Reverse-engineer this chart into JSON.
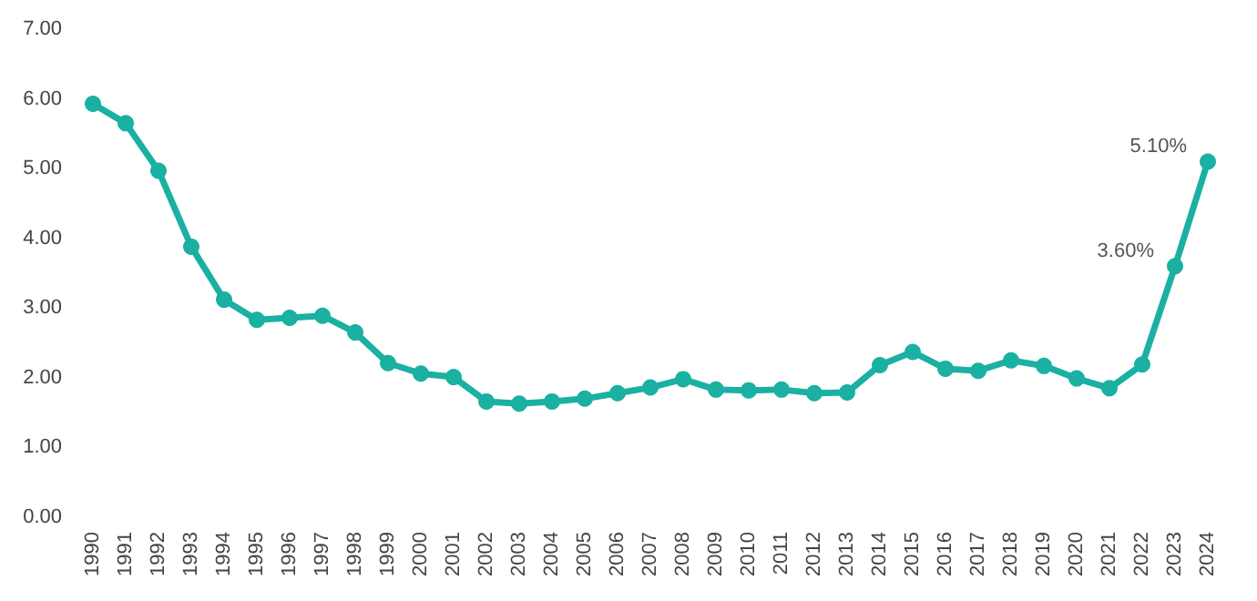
{
  "chart_data": {
    "type": "line",
    "categories": [
      "1990",
      "1991",
      "1992",
      "1993",
      "1994",
      "1995",
      "1996",
      "1997",
      "1998",
      "1999",
      "2000",
      "2001",
      "2002",
      "2003",
      "2004",
      "2005",
      "2006",
      "2007",
      "2008",
      "2009",
      "2010",
      "2011",
      "2012",
      "2013",
      "2014",
      "2015",
      "2016",
      "2017",
      "2018",
      "2019",
      "2020",
      "2021",
      "2022",
      "2023",
      "2024"
    ],
    "series": [
      {
        "color": "#1ab0a2",
        "values": [
          5.93,
          5.65,
          4.97,
          3.88,
          3.12,
          2.83,
          2.86,
          2.89,
          2.65,
          2.21,
          2.06,
          2.01,
          1.66,
          1.63,
          1.66,
          1.7,
          1.78,
          1.86,
          1.98,
          1.83,
          1.82,
          1.83,
          1.78,
          1.79,
          2.18,
          2.37,
          2.13,
          2.1,
          2.25,
          2.17,
          1.99,
          1.85,
          2.19,
          3.6,
          5.1
        ],
        "value_labels": [
          null,
          null,
          null,
          null,
          null,
          null,
          null,
          null,
          null,
          null,
          null,
          null,
          null,
          null,
          null,
          null,
          null,
          null,
          null,
          null,
          null,
          null,
          null,
          null,
          null,
          null,
          null,
          null,
          null,
          null,
          null,
          null,
          null,
          "3.60%",
          "5.10%"
        ]
      }
    ],
    "ylim": [
      0,
      7
    ],
    "yticks": [
      {
        "value": 0,
        "label": "0.00"
      },
      {
        "value": 1,
        "label": "1.00"
      },
      {
        "value": 2,
        "label": "2.00"
      },
      {
        "value": 3,
        "label": "3.00"
      },
      {
        "value": 4,
        "label": "4.00"
      },
      {
        "value": 5,
        "label": "5.00"
      },
      {
        "value": 6,
        "label": "6.00"
      },
      {
        "value": 7,
        "label": "7.00"
      }
    ],
    "grid": false,
    "marker": "circle",
    "line_style": "solid"
  }
}
